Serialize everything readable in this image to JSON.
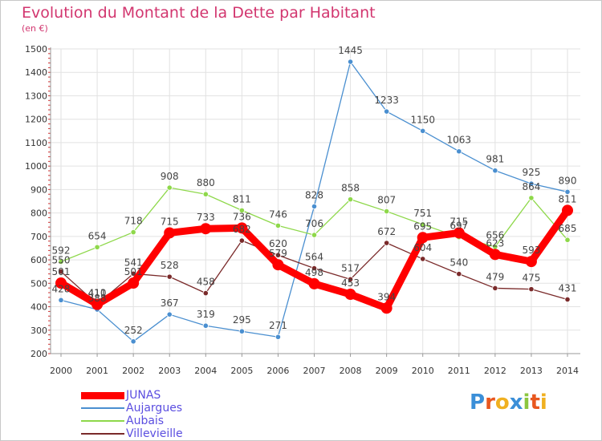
{
  "title": "Evolution du Montant de la Dette par Habitant",
  "unit": "(en €)",
  "logo": {
    "letters": [
      "P",
      "r",
      "o",
      "x",
      "i",
      "t",
      "i"
    ],
    "colors": [
      "#3b8fd8",
      "#e8571f",
      "#f0b020",
      "#3b8fd8",
      "#8cc63f",
      "#e8571f",
      "#f0b020"
    ]
  },
  "chart_data": {
    "type": "line",
    "title": "Evolution du Montant de la Dette par Habitant",
    "ylabel": "(en €)",
    "xlabel": "",
    "x": [
      "2000",
      "2001",
      "2002",
      "2003",
      "2004",
      "2005",
      "2006",
      "2007",
      "2008",
      "2009",
      "2010",
      "2011",
      "2012",
      "2013",
      "2014"
    ],
    "yticks": [
      "200",
      "300",
      "400",
      "500",
      "600",
      "700",
      "800",
      "900",
      "1000",
      "1100",
      "1200",
      "1300",
      "1400",
      "1500"
    ],
    "ylim": [
      200,
      1500
    ],
    "grid": true,
    "legend_position": "bottom-left",
    "series": [
      {
        "name": "JUNAS",
        "color": "#ff0000",
        "style": "thick",
        "values": [
          501,
          410,
          501,
          715,
          733,
          736,
          579,
          498,
          453,
          394,
          695,
          715,
          623,
          593,
          811
        ],
        "labels": [
          "501",
          "410",
          "501",
          "715",
          "733",
          "736",
          "579",
          "498",
          "453",
          "394",
          "695",
          "715",
          "623",
          "593",
          "811"
        ]
      },
      {
        "name": "Aujargues",
        "color": "#4a8fd0",
        "style": "thin",
        "values": [
          428,
          388,
          252,
          367,
          319,
          295,
          271,
          828,
          1445,
          1233,
          1150,
          1063,
          981,
          925,
          890
        ],
        "labels": [
          "428",
          "388",
          "252",
          "367",
          "319",
          "295",
          "271",
          "828",
          "1445",
          "1233",
          "1150",
          "1063",
          "981",
          "925",
          "890"
        ]
      },
      {
        "name": "Aubais",
        "color": "#8ed84a",
        "style": "thin",
        "values": [
          592,
          654,
          718,
          908,
          880,
          811,
          746,
          706,
          858,
          807,
          751,
          697,
          656,
          864,
          685
        ],
        "labels": [
          "592",
          "654",
          "718",
          "908",
          "880",
          "811",
          "746",
          "706",
          "858",
          "807",
          "751",
          "697",
          "656",
          "864",
          "685"
        ]
      },
      {
        "name": "Villevieille",
        "color": "#7a2a2a",
        "style": "thin",
        "values": [
          550,
          411,
          541,
          528,
          458,
          682,
          620,
          564,
          517,
          672,
          604,
          540,
          479,
          475,
          431
        ],
        "labels": [
          "550",
          "411",
          "541",
          "528",
          "458",
          "682",
          "620",
          "564",
          "517",
          "672",
          "604",
          "540",
          "479",
          "475",
          "431"
        ]
      }
    ]
  }
}
